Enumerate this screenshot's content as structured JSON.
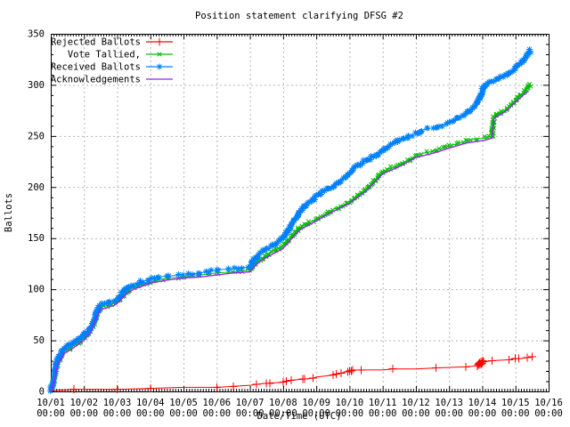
{
  "chart_data": {
    "type": "line",
    "title": "Position statement clarifying DFSG #2",
    "xlabel": "Date/Time (UTC)",
    "ylabel": "Ballots",
    "grid": true,
    "legend_position": "top-left-inside",
    "x_axis": {
      "labels": [
        "10/01",
        "10/02",
        "10/03",
        "10/04",
        "10/05",
        "10/06",
        "10/07",
        "10/08",
        "10/09",
        "10/10",
        "10/11",
        "10/12",
        "10/13",
        "10/14",
        "10/15",
        "10/16"
      ],
      "sublabel": "00:00",
      "range_days": [
        0,
        15
      ],
      "minor_ticks_per_day": 12
    },
    "y_axis": {
      "ticks": [
        0,
        50,
        100,
        150,
        200,
        250,
        300,
        350
      ],
      "range": [
        0,
        350
      ],
      "minor_step": 10
    },
    "colors": {
      "rejected": "#ff0000",
      "tallied": "#00c000",
      "received": "#0080ff",
      "acknowledgements": "#a020f0",
      "grid": "#b4b4b4",
      "border": "#000000"
    },
    "series": [
      {
        "name": "Rejected Ballots",
        "key": "rejected",
        "color": "#ff0000",
        "marker": "plus",
        "style": "line-markers",
        "points": [
          [
            0,
            0
          ],
          [
            0.15,
            1
          ],
          [
            0.7,
            2
          ],
          [
            2.0,
            2
          ],
          [
            3.0,
            3
          ],
          [
            4.0,
            4
          ],
          [
            5.0,
            4
          ],
          [
            5.5,
            5
          ],
          [
            6.0,
            6
          ],
          [
            6.2,
            7
          ],
          [
            6.5,
            8
          ],
          [
            7.0,
            9
          ],
          [
            7.1,
            10
          ],
          [
            7.25,
            11
          ],
          [
            7.6,
            12
          ],
          [
            7.9,
            13
          ],
          [
            8.0,
            14
          ],
          [
            8.5,
            16
          ],
          [
            8.6,
            17
          ],
          [
            8.75,
            18
          ],
          [
            9.0,
            20
          ],
          [
            9.1,
            21
          ],
          [
            9.35,
            21
          ],
          [
            10.0,
            21
          ],
          [
            10.3,
            22
          ],
          [
            11.0,
            22
          ],
          [
            11.6,
            23
          ],
          [
            12.5,
            24
          ],
          [
            12.85,
            25
          ],
          [
            12.95,
            27
          ],
          [
            13.02,
            29
          ],
          [
            13.3,
            30
          ],
          [
            13.8,
            31
          ],
          [
            14.0,
            32
          ],
          [
            14.1,
            32
          ],
          [
            14.35,
            33
          ],
          [
            14.55,
            34
          ]
        ],
        "marker_points": [
          [
            0.7,
            2
          ],
          [
            2.0,
            2
          ],
          [
            3.0,
            3
          ],
          [
            5.0,
            4
          ],
          [
            5.5,
            5
          ],
          [
            6.2,
            7
          ],
          [
            6.5,
            8
          ],
          [
            6.6,
            8
          ],
          [
            7.0,
            9
          ],
          [
            7.1,
            10
          ],
          [
            7.25,
            11
          ],
          [
            7.6,
            12
          ],
          [
            7.65,
            12
          ],
          [
            7.9,
            13
          ],
          [
            8.5,
            16
          ],
          [
            8.6,
            17
          ],
          [
            8.75,
            18
          ],
          [
            8.95,
            19
          ],
          [
            9.0,
            20
          ],
          [
            9.05,
            20
          ],
          [
            9.1,
            21
          ],
          [
            9.35,
            21
          ],
          [
            10.3,
            22
          ],
          [
            11.6,
            23
          ],
          [
            12.5,
            24
          ],
          [
            12.86,
            25
          ],
          [
            12.88,
            26
          ],
          [
            12.9,
            27
          ],
          [
            12.92,
            28
          ],
          [
            12.94,
            26
          ],
          [
            12.96,
            29
          ],
          [
            12.98,
            27
          ],
          [
            13.0,
            28
          ],
          [
            13.02,
            30
          ],
          [
            13.04,
            29
          ],
          [
            13.3,
            30
          ],
          [
            13.8,
            31
          ],
          [
            14.0,
            32
          ],
          [
            14.1,
            32
          ],
          [
            14.35,
            33
          ],
          [
            14.5,
            34
          ]
        ]
      },
      {
        "name": "Vote Tallied,",
        "key": "tallied",
        "color": "#00c000",
        "marker": "x",
        "style": "band",
        "points": [
          [
            0,
            0
          ],
          [
            0.05,
            5
          ],
          [
            0.1,
            12
          ],
          [
            0.15,
            20
          ],
          [
            0.2,
            27
          ],
          [
            0.3,
            34
          ],
          [
            0.4,
            39
          ],
          [
            0.55,
            42
          ],
          [
            0.7,
            45
          ],
          [
            0.85,
            48
          ],
          [
            1.0,
            52
          ],
          [
            1.1,
            55
          ],
          [
            1.2,
            59
          ],
          [
            1.3,
            66
          ],
          [
            1.4,
            76
          ],
          [
            1.5,
            82
          ],
          [
            1.7,
            84
          ],
          [
            1.9,
            86
          ],
          [
            2.0,
            88
          ],
          [
            2.1,
            91
          ],
          [
            2.3,
            98
          ],
          [
            2.5,
            102
          ],
          [
            2.7,
            104
          ],
          [
            3.0,
            107
          ],
          [
            3.2,
            109
          ],
          [
            3.5,
            111
          ],
          [
            4.0,
            112
          ],
          [
            4.5,
            114
          ],
          [
            5.0,
            116
          ],
          [
            5.5,
            117
          ],
          [
            6.0,
            119
          ],
          [
            6.1,
            123
          ],
          [
            6.25,
            128
          ],
          [
            6.5,
            133
          ],
          [
            6.75,
            138
          ],
          [
            7.0,
            142
          ],
          [
            7.1,
            146
          ],
          [
            7.3,
            153
          ],
          [
            7.5,
            160
          ],
          [
            7.7,
            164
          ],
          [
            7.9,
            167
          ],
          [
            8.0,
            169
          ],
          [
            8.2,
            172
          ],
          [
            8.5,
            178
          ],
          [
            8.8,
            182
          ],
          [
            9.0,
            186
          ],
          [
            9.2,
            191
          ],
          [
            9.5,
            198
          ],
          [
            9.8,
            208
          ],
          [
            10.0,
            215
          ],
          [
            10.2,
            218
          ],
          [
            10.5,
            222
          ],
          [
            10.8,
            227
          ],
          [
            11.0,
            231
          ],
          [
            11.2,
            233
          ],
          [
            11.5,
            235
          ],
          [
            11.8,
            238
          ],
          [
            12.0,
            240
          ],
          [
            12.2,
            242
          ],
          [
            12.5,
            245
          ],
          [
            12.8,
            247
          ],
          [
            13.1,
            248
          ],
          [
            13.3,
            250
          ],
          [
            13.32,
            261
          ],
          [
            13.35,
            269
          ],
          [
            13.5,
            272
          ],
          [
            13.7,
            276
          ],
          [
            13.9,
            281
          ],
          [
            14.0,
            285
          ],
          [
            14.2,
            291
          ],
          [
            14.35,
            296
          ],
          [
            14.45,
            301
          ]
        ]
      },
      {
        "name": "Received Ballots",
        "key": "received",
        "color": "#0080ff",
        "marker": "asterisk",
        "style": "band",
        "points": [
          [
            0,
            0
          ],
          [
            0.05,
            6
          ],
          [
            0.1,
            15
          ],
          [
            0.15,
            23
          ],
          [
            0.2,
            30
          ],
          [
            0.3,
            37
          ],
          [
            0.4,
            42
          ],
          [
            0.55,
            45
          ],
          [
            0.7,
            48
          ],
          [
            0.85,
            51
          ],
          [
            1.0,
            55
          ],
          [
            1.1,
            58
          ],
          [
            1.2,
            62
          ],
          [
            1.3,
            69
          ],
          [
            1.4,
            79
          ],
          [
            1.5,
            85
          ],
          [
            1.7,
            87
          ],
          [
            1.9,
            89
          ],
          [
            2.0,
            91
          ],
          [
            2.1,
            94
          ],
          [
            2.3,
            101
          ],
          [
            2.5,
            105
          ],
          [
            2.7,
            107
          ],
          [
            3.0,
            110
          ],
          [
            3.2,
            112
          ],
          [
            3.5,
            113
          ],
          [
            4.0,
            114
          ],
          [
            4.5,
            116
          ],
          [
            5.0,
            119
          ],
          [
            5.5,
            120
          ],
          [
            6.0,
            122
          ],
          [
            6.1,
            127
          ],
          [
            6.25,
            133
          ],
          [
            6.5,
            139
          ],
          [
            6.75,
            144
          ],
          [
            7.0,
            150
          ],
          [
            7.1,
            155
          ],
          [
            7.3,
            166
          ],
          [
            7.5,
            175
          ],
          [
            7.7,
            183
          ],
          [
            7.9,
            188
          ],
          [
            8.0,
            191
          ],
          [
            8.2,
            196
          ],
          [
            8.5,
            201
          ],
          [
            8.8,
            208
          ],
          [
            9.0,
            214
          ],
          [
            9.2,
            220
          ],
          [
            9.5,
            226
          ],
          [
            9.8,
            231
          ],
          [
            10.0,
            236
          ],
          [
            10.2,
            240
          ],
          [
            10.5,
            246
          ],
          [
            10.8,
            250
          ],
          [
            11.0,
            252
          ],
          [
            11.2,
            256
          ],
          [
            11.5,
            258
          ],
          [
            11.8,
            261
          ],
          [
            12.0,
            263
          ],
          [
            12.2,
            267
          ],
          [
            12.4,
            270
          ],
          [
            12.6,
            274
          ],
          [
            12.8,
            281
          ],
          [
            12.95,
            287
          ],
          [
            13.0,
            296
          ],
          [
            13.1,
            300
          ],
          [
            13.3,
            303
          ],
          [
            13.5,
            306
          ],
          [
            13.8,
            311
          ],
          [
            14.0,
            317
          ],
          [
            14.15,
            321
          ],
          [
            14.3,
            326
          ],
          [
            14.45,
            334
          ]
        ]
      },
      {
        "name": "Acknowledgements",
        "key": "acknowledgements",
        "color": "#a020f0",
        "marker": "none",
        "style": "line",
        "points": [
          [
            0,
            0
          ],
          [
            0.1,
            10
          ],
          [
            0.2,
            25
          ],
          [
            0.4,
            37
          ],
          [
            0.7,
            43
          ],
          [
            1.0,
            50
          ],
          [
            1.2,
            57
          ],
          [
            1.35,
            70
          ],
          [
            1.5,
            80
          ],
          [
            1.9,
            84
          ],
          [
            2.0,
            86
          ],
          [
            2.3,
            96
          ],
          [
            2.5,
            100
          ],
          [
            3.0,
            106
          ],
          [
            3.5,
            109
          ],
          [
            4.0,
            111
          ],
          [
            4.5,
            112
          ],
          [
            5.0,
            114
          ],
          [
            5.5,
            116
          ],
          [
            6.0,
            117
          ],
          [
            6.25,
            126
          ],
          [
            6.5,
            131
          ],
          [
            7.0,
            140
          ],
          [
            7.3,
            151
          ],
          [
            7.5,
            158
          ],
          [
            8.0,
            167
          ],
          [
            8.5,
            176
          ],
          [
            9.0,
            184
          ],
          [
            9.5,
            196
          ],
          [
            9.8,
            206
          ],
          [
            10.0,
            213
          ],
          [
            10.5,
            220
          ],
          [
            11.0,
            229
          ],
          [
            11.5,
            233
          ],
          [
            12.0,
            238
          ],
          [
            12.5,
            243
          ],
          [
            13.1,
            246
          ],
          [
            13.3,
            248
          ],
          [
            13.35,
            267
          ],
          [
            13.5,
            270
          ],
          [
            13.7,
            274
          ],
          [
            14.0,
            283
          ],
          [
            14.3,
            292
          ],
          [
            14.4,
            294
          ]
        ]
      }
    ],
    "zorder": [
      1,
      2,
      3,
      0
    ]
  }
}
